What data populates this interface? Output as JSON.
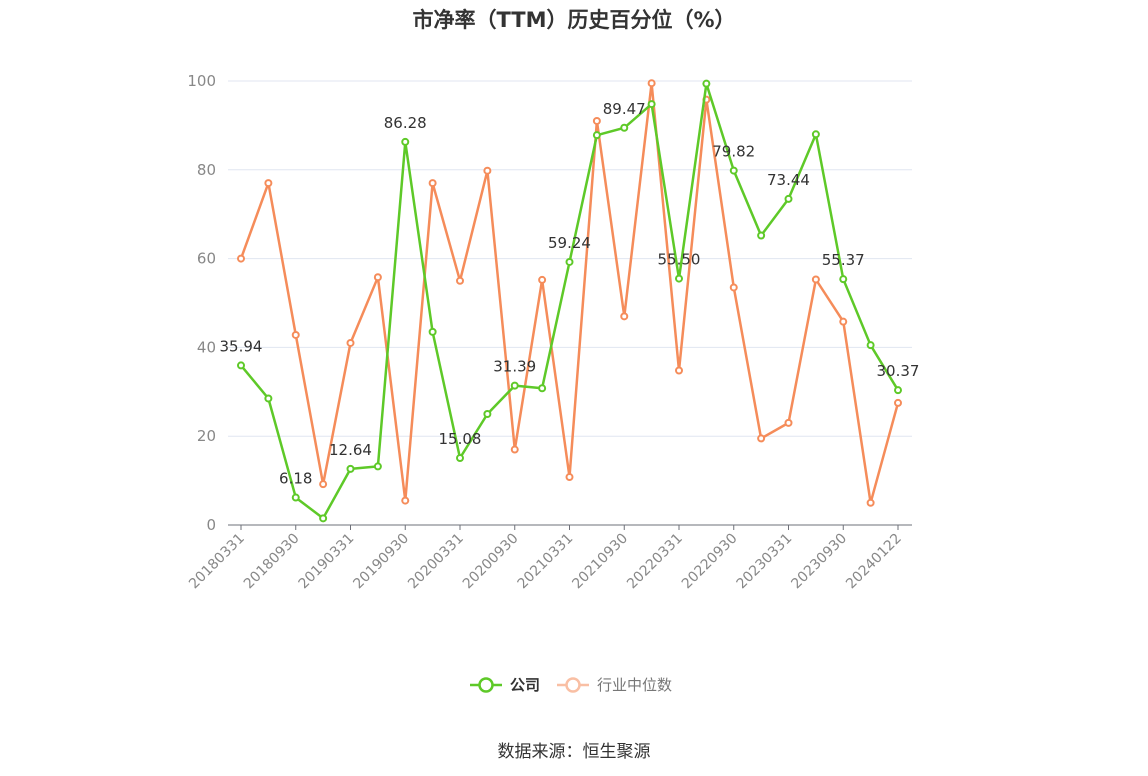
{
  "chart_data": {
    "type": "line",
    "title": "市净率（TTM）历史百分位（%）",
    "ylim": [
      0,
      100
    ],
    "yticks": [
      0,
      20,
      40,
      60,
      80,
      100
    ],
    "grid": true,
    "legend_position": "bottom-center",
    "x_tick_labels": [
      "20180331",
      "20180930",
      "20190331",
      "20190930",
      "20200331",
      "20200930",
      "20210331",
      "20210930",
      "20220331",
      "20220930",
      "20230331",
      "20230930",
      "20240122"
    ],
    "x": [
      "20180331",
      "20180630",
      "20180930",
      "20181231",
      "20190331",
      "20190630",
      "20190930",
      "20191231",
      "20200331",
      "20200630",
      "20200930",
      "20201231",
      "20210331",
      "20210630",
      "20210930",
      "20211231",
      "20220331",
      "20220630",
      "20220930",
      "20221231",
      "20230331",
      "20230630",
      "20230930",
      "20231231",
      "20240122"
    ],
    "series": [
      {
        "name": "公司",
        "color": "#5ec928",
        "values": [
          35.94,
          28.5,
          6.18,
          1.5,
          12.64,
          13.2,
          86.28,
          43.5,
          15.08,
          25.0,
          31.39,
          30.8,
          59.24,
          87.8,
          89.47,
          94.8,
          55.5,
          99.4,
          79.82,
          65.2,
          73.44,
          88.0,
          55.37,
          40.5,
          30.37
        ],
        "data_labels": {
          "0": "35.94",
          "2": "6.18",
          "4": "12.64",
          "6": "86.28",
          "8": "15.08",
          "10": "31.39",
          "12": "59.24",
          "14": "89.47",
          "16": "55.50",
          "18": "79.82",
          "20": "73.44",
          "22": "55.37",
          "24": "30.37"
        }
      },
      {
        "name": "行业中位数",
        "color": "#f58c5a",
        "values": [
          60.0,
          77.0,
          42.8,
          9.2,
          41.0,
          55.8,
          5.5,
          77.0,
          55.0,
          79.8,
          17.0,
          55.2,
          10.8,
          91.0,
          47.0,
          99.5,
          34.8,
          95.8,
          53.5,
          19.5,
          23.0,
          55.3,
          45.8,
          5.0,
          27.5
        ]
      }
    ]
  },
  "source_text": "数据来源：恒生聚源"
}
